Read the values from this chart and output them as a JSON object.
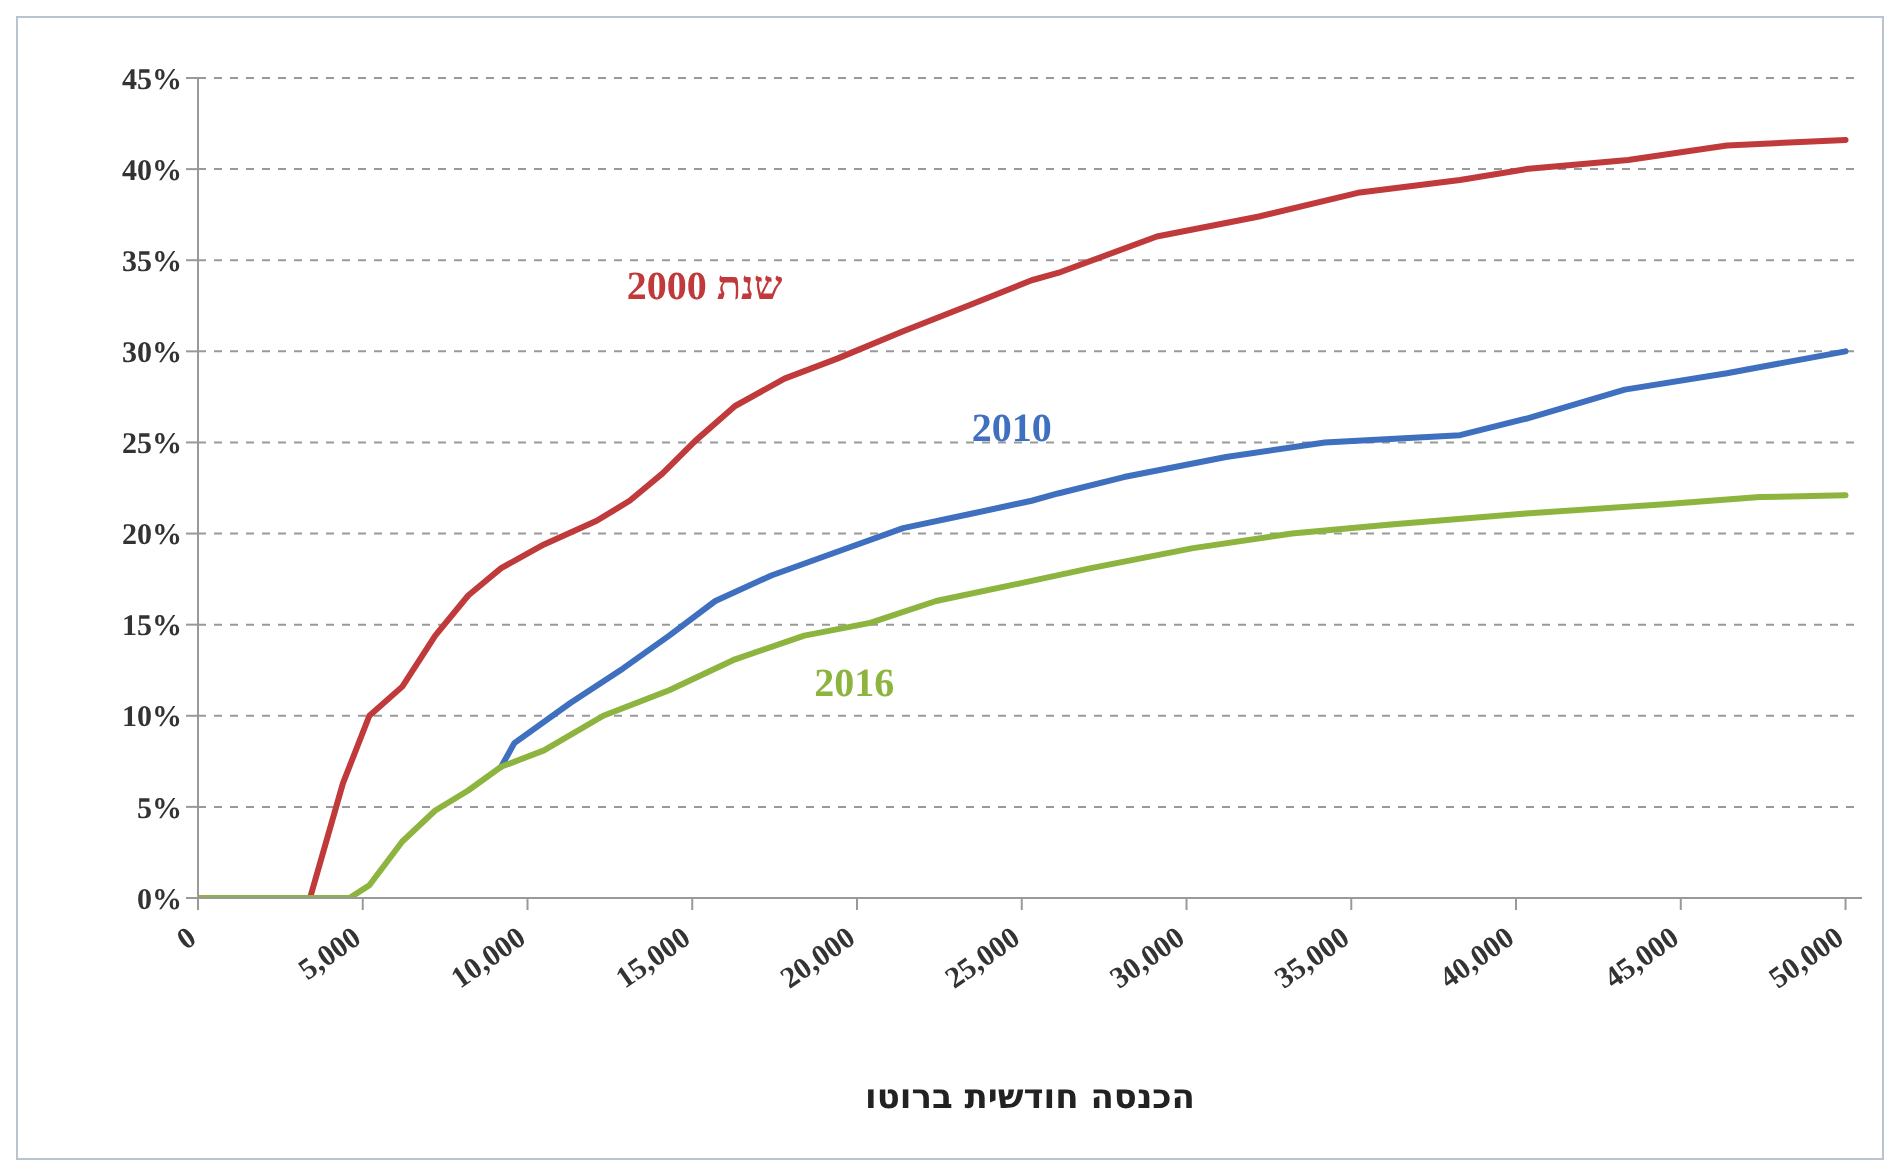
{
  "chart_data": {
    "type": "line",
    "xlabel": "הכנסה חודשית ברוטו",
    "xlim": [
      0,
      50500
    ],
    "ylim": [
      0,
      45
    ],
    "xticks": [
      0,
      {
        "value": 5000,
        "label": "5,000"
      },
      {
        "value": 10000,
        "label": "10,000"
      },
      {
        "value": 15000,
        "label": "15,000"
      },
      {
        "value": 20000,
        "label": "20,000"
      },
      {
        "value": 25000,
        "label": "25,000"
      },
      {
        "value": 30000,
        "label": "30,000"
      },
      {
        "value": 35000,
        "label": "35,000"
      },
      {
        "value": 40000,
        "label": "40,000"
      },
      {
        "value": 45000,
        "label": "45,000"
      },
      {
        "value": 50000,
        "label": "50,000"
      }
    ],
    "yticks": [
      {
        "value": 0,
        "label": "0%"
      },
      {
        "value": 5,
        "label": "5%"
      },
      {
        "value": 10,
        "label": "10%"
      },
      {
        "value": 15,
        "label": "15%"
      },
      {
        "value": 20,
        "label": "20%"
      },
      {
        "value": 25,
        "label": "25%"
      },
      {
        "value": 30,
        "label": "30%"
      },
      {
        "value": 35,
        "label": "35%"
      },
      {
        "value": 40,
        "label": "40%"
      },
      {
        "value": 45,
        "label": "45%"
      }
    ],
    "grid": "y",
    "legend": false,
    "marker": "none",
    "line_style": "solid",
    "series": [
      {
        "name": "שנת 2000",
        "color": "#c0393b",
        "x": [
          0,
          3400,
          4400,
          5200,
          6200,
          7200,
          8200,
          9200,
          10500,
          12100,
          13100,
          14100,
          15100,
          16300,
          17800,
          19400,
          21400,
          23500,
          25300,
          26100,
          29100,
          32200,
          35200,
          38300,
          40300,
          43400,
          46400,
          50000
        ],
        "values": [
          0,
          0,
          6.3,
          10,
          11.6,
          14.4,
          16.6,
          18.1,
          19.4,
          20.7,
          21.8,
          23.3,
          25.1,
          27,
          28.5,
          29.6,
          31.1,
          32.6,
          33.9,
          34.3,
          36.3,
          37.4,
          38.7,
          39.4,
          40,
          40.5,
          41.3,
          41.6
        ]
      },
      {
        "name": "2010",
        "color": "#3f6fbf",
        "x": [
          9200,
          9600,
          11300,
          12900,
          14300,
          15700,
          17400,
          19400,
          21400,
          23500,
          25300,
          26100,
          28100,
          31200,
          34200,
          38300,
          40300,
          43300,
          46400,
          50000
        ],
        "values": [
          7.2,
          8.5,
          10.7,
          12.6,
          14.4,
          16.3,
          17.7,
          19,
          20.3,
          21.1,
          21.8,
          22.2,
          23.1,
          24.2,
          25,
          25.4,
          26.3,
          27.9,
          28.8,
          30
        ]
      },
      {
        "name": "2016",
        "color": "#8db43e",
        "x": [
          0,
          4600,
          5200,
          6200,
          7200,
          8200,
          9200,
          10500,
          12300,
          14300,
          16300,
          18400,
          20400,
          22400,
          25300,
          27100,
          30200,
          33200,
          36200,
          40300,
          44400,
          47400,
          50000
        ],
        "values": [
          0,
          0,
          0.7,
          3.1,
          4.8,
          5.9,
          7.2,
          8.1,
          10,
          11.4,
          13.1,
          14.4,
          15.1,
          16.3,
          17.4,
          18.1,
          19.2,
          20,
          20.5,
          21.1,
          21.6,
          22,
          22.1
        ]
      }
    ]
  }
}
